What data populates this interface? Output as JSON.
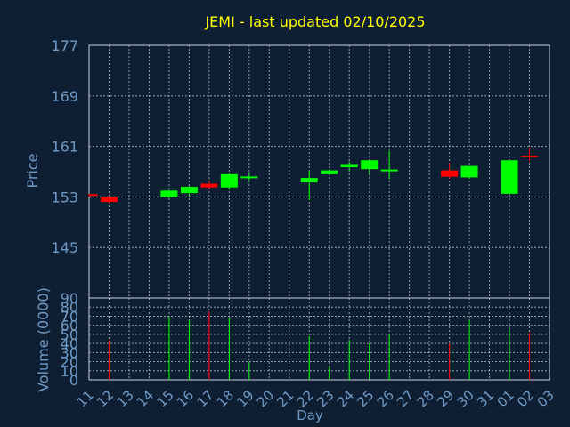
{
  "chart_data": {
    "type": "candlestick",
    "title": "JEMI - last updated 02/10/2025",
    "xlabel": "Day",
    "price_ylabel": "Price",
    "volume_ylabel": "Volume (0000)",
    "price_ylim": [
      137,
      177
    ],
    "price_ticks": [
      177,
      169,
      161,
      153,
      145
    ],
    "volume_ylim": [
      0,
      90
    ],
    "volume_ticks": [
      90,
      80,
      70,
      60,
      50,
      40,
      30,
      20,
      10,
      0
    ],
    "x_labels": [
      "11",
      "12",
      "13",
      "14",
      "15",
      "16",
      "17",
      "18",
      "19",
      "20",
      "21",
      "22",
      "23",
      "24",
      "25",
      "26",
      "27",
      "28",
      "29",
      "30",
      "31",
      "01",
      "02",
      "03"
    ],
    "candles": [
      {
        "day": "11",
        "open": 153.3,
        "high": 153.5,
        "low": 153.0,
        "close": 153.1,
        "volume": 0
      },
      {
        "day": "12",
        "open": 153.0,
        "high": 153.2,
        "low": 151.9,
        "close": 152.2,
        "volume": 44
      },
      {
        "day": "15",
        "open": 153.0,
        "high": 154.1,
        "low": 152.8,
        "close": 154.0,
        "volume": 70
      },
      {
        "day": "16",
        "open": 153.6,
        "high": 154.7,
        "low": 153.2,
        "close": 154.6,
        "volume": 66
      },
      {
        "day": "17",
        "open": 155.1,
        "high": 155.6,
        "low": 154.3,
        "close": 154.5,
        "volume": 75
      },
      {
        "day": "18",
        "open": 154.5,
        "high": 156.7,
        "low": 154.3,
        "close": 156.6,
        "volume": 68
      },
      {
        "day": "19",
        "open": 156.0,
        "high": 156.9,
        "low": 155.5,
        "close": 156.1,
        "volume": 20
      },
      {
        "day": "22",
        "open": 155.3,
        "high": 157.1,
        "low": 152.5,
        "close": 156.0,
        "volume": 48
      },
      {
        "day": "23",
        "open": 156.6,
        "high": 157.3,
        "low": 156.5,
        "close": 157.2,
        "volume": 15
      },
      {
        "day": "24",
        "open": 157.7,
        "high": 158.6,
        "low": 157.1,
        "close": 158.2,
        "volume": 44
      },
      {
        "day": "25",
        "open": 157.4,
        "high": 158.8,
        "low": 156.5,
        "close": 158.8,
        "volume": 40
      },
      {
        "day": "26",
        "open": 157.1,
        "high": 160.3,
        "low": 155.8,
        "close": 157.2,
        "volume": 50
      },
      {
        "day": "29",
        "open": 157.2,
        "high": 158.4,
        "low": 155.9,
        "close": 156.2,
        "volume": 40
      },
      {
        "day": "30",
        "open": 156.1,
        "high": 157.9,
        "low": 155.9,
        "close": 157.9,
        "volume": 66
      },
      {
        "day": "01",
        "open": 153.5,
        "high": 158.8,
        "low": 153.4,
        "close": 158.8,
        "volume": 57
      },
      {
        "day": "02",
        "open": 159.4,
        "high": 160.8,
        "low": 158.7,
        "close": 159.2,
        "volume": 52
      }
    ]
  },
  "colors": {
    "background": "#0f1f33",
    "up": "#00ff00",
    "down": "#ff0000",
    "title": "#ffff00",
    "axis_text": "#6f9ac6",
    "grid": "#c8d2dc"
  }
}
